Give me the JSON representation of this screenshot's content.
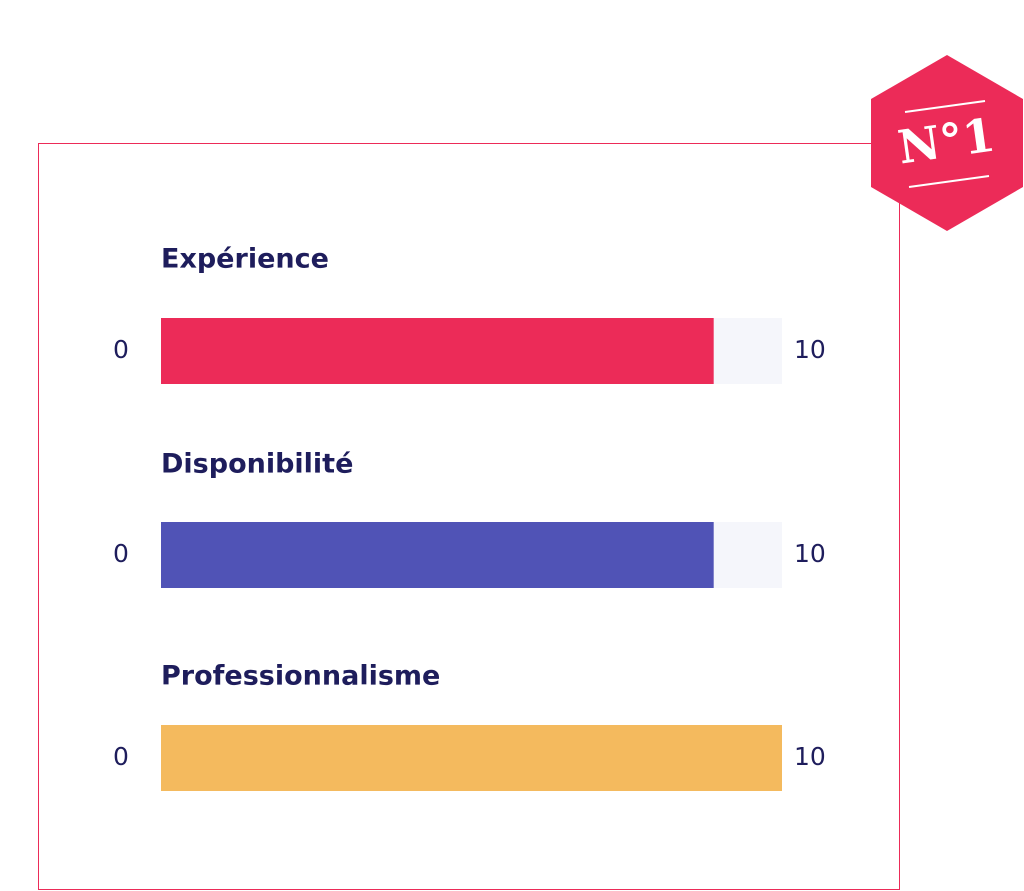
{
  "badge": "N°1",
  "chart_data": [
    {
      "type": "bar",
      "title": "Expérience",
      "values": [
        8.9
      ],
      "color": "#ec2b58",
      "xlim": [
        0,
        10
      ],
      "xticks": [
        0,
        10
      ]
    },
    {
      "type": "bar",
      "title": "Disponibilité",
      "values": [
        8.9
      ],
      "color": "#5053b6",
      "xlim": [
        0,
        10
      ],
      "xticks": [
        0,
        10
      ]
    },
    {
      "type": "bar",
      "title": "Professionnalisme",
      "values": [
        10
      ],
      "color": "#f4ba5e",
      "xlim": [
        0,
        10
      ],
      "xticks": [
        0,
        10
      ]
    }
  ]
}
